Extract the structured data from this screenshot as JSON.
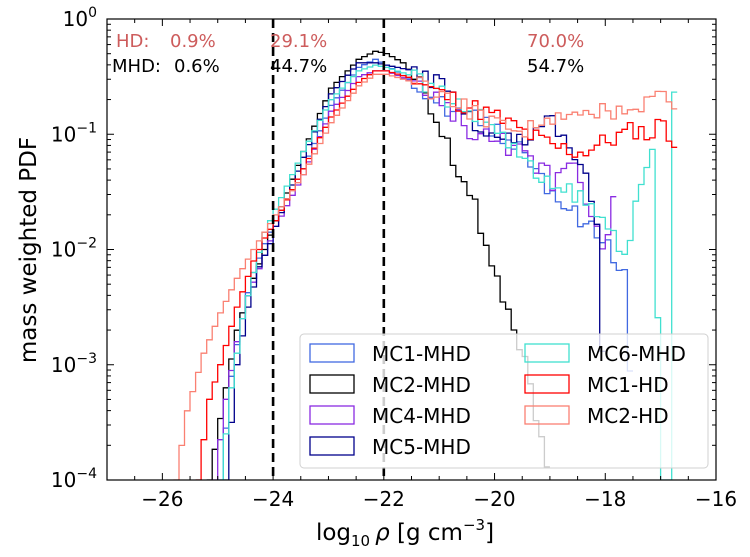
{
  "chart_data": {
    "type": "step-histogram",
    "title": "",
    "xlabel_parts": {
      "pre": "log",
      "sub": "10",
      "rho": "ρ",
      "unit": " [g cm",
      "sup": "−3",
      "end": "]"
    },
    "ylabel": "mass weighted PDF",
    "xlim": [
      -27.0,
      -16.0
    ],
    "ylim_log10": [
      -4,
      0
    ],
    "x_ticks": [
      -26,
      -24,
      -22,
      -20,
      -18,
      -16
    ],
    "x_tick_labels": [
      "−26",
      "−24",
      "−22",
      "−20",
      "−18",
      "−16"
    ],
    "y_ticks": [
      {
        "base": "10",
        "exp": "−4",
        "value": -4
      },
      {
        "base": "10",
        "exp": "−3",
        "value": -3
      },
      {
        "base": "10",
        "exp": "−2",
        "value": -2
      },
      {
        "base": "10",
        "exp": "−1",
        "value": -1
      },
      {
        "base": "10",
        "exp": "0",
        "value": 0
      }
    ],
    "vlines": [
      -24,
      -22
    ],
    "annotations": {
      "hd_label": "HD:",
      "hd_low": "0.9%",
      "mhd_label": "MHD:",
      "mhd_low": "0.6%",
      "hd_mid": "29.1%",
      "mhd_mid": "44.7%",
      "hd_high": "70.0%",
      "mhd_high": "54.7%"
    },
    "colors": {
      "hd_text": "#cd5c5c",
      "mhd_text": "#000000"
    },
    "legend_location": "lower-right",
    "series": [
      {
        "name": "MC1-MHD",
        "color": "#4169e1",
        "points": [
          [
            -25.0,
            -4.0
          ],
          [
            -24.8,
            -3.1
          ],
          [
            -24.6,
            -2.55
          ],
          [
            -24.4,
            -2.2
          ],
          [
            -24.2,
            -1.95
          ],
          [
            -24.0,
            -1.75
          ],
          [
            -23.5,
            -1.3
          ],
          [
            -23.0,
            -0.75
          ],
          [
            -22.5,
            -0.42
          ],
          [
            -22.2,
            -0.35
          ],
          [
            -22.0,
            -0.4
          ],
          [
            -21.5,
            -0.55
          ],
          [
            -21.0,
            -0.75
          ],
          [
            -20.5,
            -0.85
          ],
          [
            -20.0,
            -0.95
          ],
          [
            -19.5,
            -1.15
          ],
          [
            -19.0,
            -1.5
          ],
          [
            -18.5,
            -1.75
          ],
          [
            -18.0,
            -1.95
          ],
          [
            -17.7,
            -2.2
          ],
          [
            -17.5,
            -4.0
          ]
        ]
      },
      {
        "name": "MC2-MHD",
        "color": "#000000",
        "points": [
          [
            -25.2,
            -4.0
          ],
          [
            -24.9,
            -3.2
          ],
          [
            -24.7,
            -2.7
          ],
          [
            -24.4,
            -2.25
          ],
          [
            -24.2,
            -2.0
          ],
          [
            -24.0,
            -1.75
          ],
          [
            -23.5,
            -1.15
          ],
          [
            -23.0,
            -0.6
          ],
          [
            -22.5,
            -0.35
          ],
          [
            -22.2,
            -0.28
          ],
          [
            -22.0,
            -0.3
          ],
          [
            -21.7,
            -0.38
          ],
          [
            -21.4,
            -0.55
          ],
          [
            -21.0,
            -0.95
          ],
          [
            -20.7,
            -1.3
          ],
          [
            -20.4,
            -1.65
          ],
          [
            -20.2,
            -1.9
          ],
          [
            -20.0,
            -2.25
          ],
          [
            -19.8,
            -2.6
          ],
          [
            -19.5,
            -3.0
          ],
          [
            -19.2,
            -3.6
          ],
          [
            -19.0,
            -4.0
          ]
        ]
      },
      {
        "name": "MC4-MHD",
        "color": "#8a2be2",
        "points": [
          [
            -25.1,
            -4.0
          ],
          [
            -24.9,
            -3.3
          ],
          [
            -24.7,
            -2.8
          ],
          [
            -24.5,
            -2.4
          ],
          [
            -24.2,
            -2.05
          ],
          [
            -24.0,
            -1.8
          ],
          [
            -23.5,
            -1.35
          ],
          [
            -23.0,
            -0.8
          ],
          [
            -22.5,
            -0.5
          ],
          [
            -22.2,
            -0.45
          ],
          [
            -22.0,
            -0.45
          ],
          [
            -21.5,
            -0.55
          ],
          [
            -21.0,
            -0.75
          ],
          [
            -20.5,
            -0.95
          ],
          [
            -20.0,
            -1.05
          ],
          [
            -19.5,
            -1.2
          ],
          [
            -19.0,
            -1.4
          ],
          [
            -18.6,
            -1.3
          ],
          [
            -18.3,
            -1.7
          ],
          [
            -18.1,
            -2.0
          ],
          [
            -17.9,
            -1.6
          ],
          [
            -17.8,
            -4.0
          ]
        ]
      },
      {
        "name": "MC5-MHD",
        "color": "#00008b",
        "points": [
          [
            -24.9,
            -4.0
          ],
          [
            -24.7,
            -3.0
          ],
          [
            -24.5,
            -2.5
          ],
          [
            -24.3,
            -2.15
          ],
          [
            -24.1,
            -1.95
          ],
          [
            -24.0,
            -1.8
          ],
          [
            -23.5,
            -1.2
          ],
          [
            -23.0,
            -0.65
          ],
          [
            -22.5,
            -0.38
          ],
          [
            -22.2,
            -0.38
          ],
          [
            -22.0,
            -0.4
          ],
          [
            -21.5,
            -0.45
          ],
          [
            -21.0,
            -0.55
          ],
          [
            -20.7,
            -0.75
          ],
          [
            -20.4,
            -0.9
          ],
          [
            -20.0,
            -1.0
          ],
          [
            -19.5,
            -1.05
          ],
          [
            -19.0,
            -0.9
          ],
          [
            -18.7,
            -1.1
          ],
          [
            -18.4,
            -1.4
          ],
          [
            -18.2,
            -1.8
          ],
          [
            -18.0,
            -4.0
          ]
        ]
      },
      {
        "name": "MC6-MHD",
        "color": "#40e0d0",
        "points": [
          [
            -25.0,
            -4.0
          ],
          [
            -24.8,
            -3.2
          ],
          [
            -24.6,
            -2.6
          ],
          [
            -24.4,
            -2.2
          ],
          [
            -24.2,
            -1.85
          ],
          [
            -24.0,
            -1.65
          ],
          [
            -23.5,
            -1.15
          ],
          [
            -23.0,
            -0.7
          ],
          [
            -22.5,
            -0.45
          ],
          [
            -22.2,
            -0.4
          ],
          [
            -22.0,
            -0.42
          ],
          [
            -21.5,
            -0.5
          ],
          [
            -21.0,
            -0.65
          ],
          [
            -20.5,
            -0.8
          ],
          [
            -20.0,
            -0.95
          ],
          [
            -19.5,
            -1.25
          ],
          [
            -19.0,
            -1.5
          ],
          [
            -18.6,
            -1.5
          ],
          [
            -18.3,
            -1.65
          ],
          [
            -18.0,
            -1.8
          ],
          [
            -17.7,
            -2.0
          ],
          [
            -17.4,
            -1.5
          ],
          [
            -17.2,
            -1.2
          ],
          [
            -17.0,
            -4.0
          ],
          [
            -16.9,
            -4.0
          ],
          [
            -16.8,
            -0.65
          ],
          [
            -16.7,
            -4.0
          ]
        ]
      },
      {
        "name": "MC1-HD",
        "color": "#ff0000",
        "points": [
          [
            -25.4,
            -4.0
          ],
          [
            -25.2,
            -3.3
          ],
          [
            -25.0,
            -3.0
          ],
          [
            -24.7,
            -2.5
          ],
          [
            -24.4,
            -2.1
          ],
          [
            -24.2,
            -1.9
          ],
          [
            -24.0,
            -1.75
          ],
          [
            -23.5,
            -1.3
          ],
          [
            -23.0,
            -0.85
          ],
          [
            -22.5,
            -0.55
          ],
          [
            -22.2,
            -0.45
          ],
          [
            -22.0,
            -0.45
          ],
          [
            -21.5,
            -0.52
          ],
          [
            -21.0,
            -0.65
          ],
          [
            -20.5,
            -0.75
          ],
          [
            -20.0,
            -0.85
          ],
          [
            -19.5,
            -0.98
          ],
          [
            -19.0,
            -1.1
          ],
          [
            -18.5,
            -1.15
          ],
          [
            -18.0,
            -1.05
          ],
          [
            -17.5,
            -0.95
          ],
          [
            -17.2,
            -1.0
          ],
          [
            -17.0,
            -0.85
          ],
          [
            -16.8,
            -1.1
          ],
          [
            -16.7,
            -4.0
          ]
        ]
      },
      {
        "name": "MC2-HD",
        "color": "#fa8072",
        "points": [
          [
            -25.8,
            -4.0
          ],
          [
            -25.6,
            -3.4
          ],
          [
            -25.3,
            -2.9
          ],
          [
            -25.0,
            -2.55
          ],
          [
            -24.7,
            -2.25
          ],
          [
            -24.4,
            -2.0
          ],
          [
            -24.2,
            -1.85
          ],
          [
            -24.0,
            -1.7
          ],
          [
            -23.5,
            -1.35
          ],
          [
            -23.0,
            -0.9
          ],
          [
            -22.5,
            -0.58
          ],
          [
            -22.2,
            -0.48
          ],
          [
            -22.0,
            -0.48
          ],
          [
            -21.5,
            -0.55
          ],
          [
            -21.0,
            -0.7
          ],
          [
            -20.5,
            -0.8
          ],
          [
            -20.0,
            -0.9
          ],
          [
            -19.5,
            -0.95
          ],
          [
            -19.0,
            -0.9
          ],
          [
            -18.5,
            -0.85
          ],
          [
            -18.0,
            -0.8
          ],
          [
            -17.5,
            -0.75
          ],
          [
            -17.2,
            -0.65
          ],
          [
            -17.0,
            -0.55
          ],
          [
            -16.8,
            -0.8
          ],
          [
            -16.7,
            -4.0
          ]
        ]
      }
    ]
  }
}
